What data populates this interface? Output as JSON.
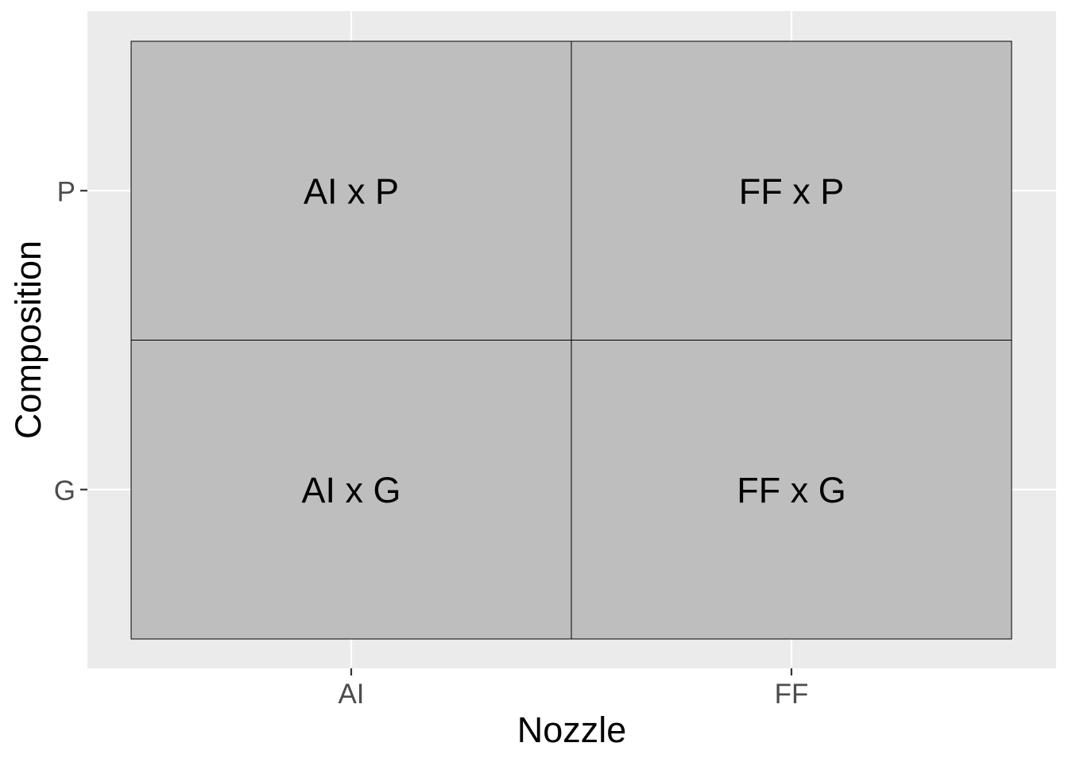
{
  "chart_data": {
    "type": "heatmap",
    "title": "",
    "xlabel": "Nozzle",
    "ylabel": "Composition",
    "x_categories": [
      "AI",
      "FF"
    ],
    "y_categories": [
      "G",
      "P"
    ],
    "grid": true,
    "legend": "none",
    "cells": [
      {
        "x": "AI",
        "y": "P",
        "label": "AI x P"
      },
      {
        "x": "FF",
        "y": "P",
        "label": "FF x P"
      },
      {
        "x": "AI",
        "y": "G",
        "label": "AI x G"
      },
      {
        "x": "FF",
        "y": "G",
        "label": "FF x G"
      }
    ],
    "colors": {
      "panel_background": "#ebebeb",
      "grid_line": "#ffffff",
      "tile_fill": "#bebebe",
      "tile_border": "#000000",
      "tick_mark": "#333333"
    }
  }
}
